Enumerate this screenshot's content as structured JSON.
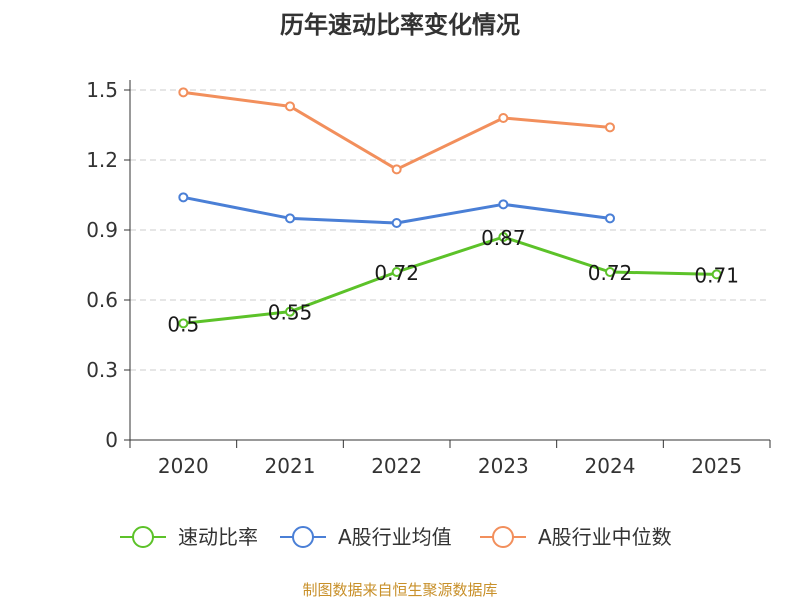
{
  "chart_data": {
    "type": "line",
    "title": "历年速动比率变化情况",
    "categories": [
      "2020",
      "2021",
      "2022",
      "2023",
      "2024",
      "2025"
    ],
    "y_ticks": [
      "0",
      "0.3",
      "0.6",
      "0.9",
      "1.2",
      "1.5"
    ],
    "ylim": [
      0,
      1.5
    ],
    "grid": true,
    "legend_position": "bottom",
    "series": [
      {
        "name": "速动比率",
        "color": "#5cc229",
        "values": [
          0.5,
          0.55,
          0.72,
          0.87,
          0.72,
          0.71
        ],
        "labels": [
          "0.5",
          "0.55",
          "0.72",
          "0.87",
          "0.72",
          "0.71"
        ]
      },
      {
        "name": "A股行业均值",
        "color": "#4a7fd6",
        "values": [
          1.04,
          0.95,
          0.93,
          1.01,
          0.95,
          null
        ]
      },
      {
        "name": "A股行业中位数",
        "color": "#f28f5c",
        "values": [
          1.49,
          1.43,
          1.16,
          1.38,
          1.34,
          null
        ]
      }
    ],
    "source": "制图数据来自恒生聚源数据库"
  }
}
